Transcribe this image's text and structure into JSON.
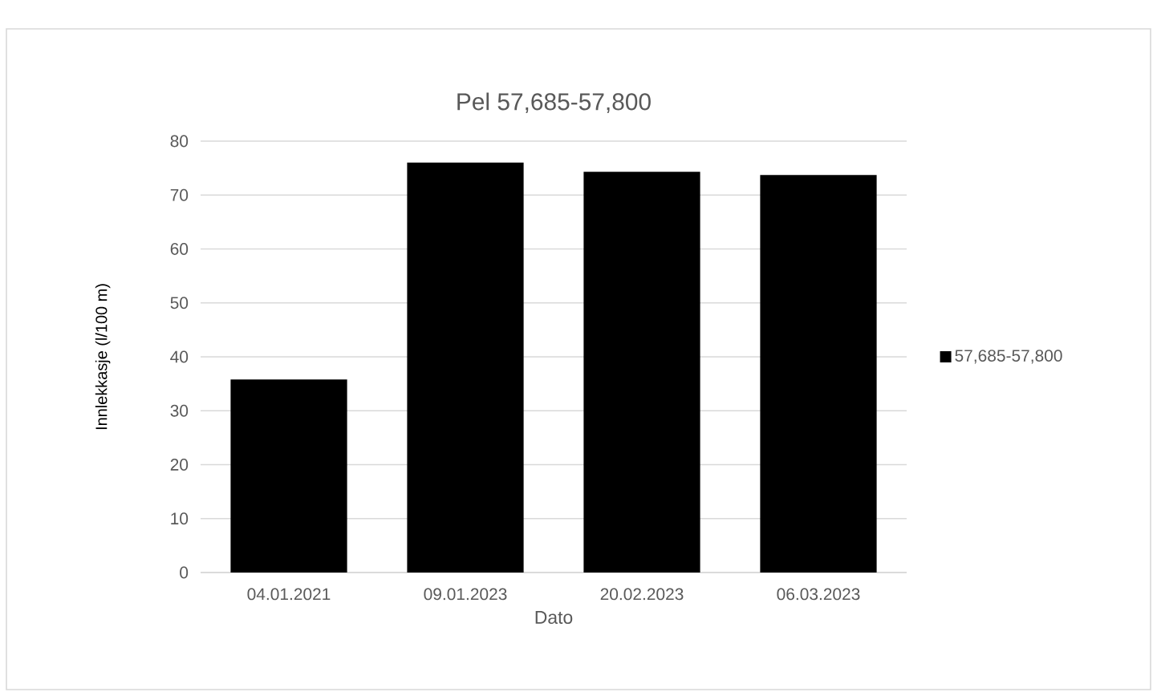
{
  "chart_data": {
    "type": "bar",
    "title": "Pel 57,685-57,800",
    "xlabel": "Dato",
    "ylabel": "Innlekkasje (l/100 m)",
    "categories": [
      "04.01.2021",
      "09.01.2023",
      "20.02.2023",
      "06.03.2023"
    ],
    "series": [
      {
        "name": "57,685-57,800",
        "color": "#000000",
        "values": [
          35.8,
          76.0,
          74.3,
          73.7
        ]
      }
    ],
    "ylim": [
      0,
      80
    ],
    "yticks": [
      0,
      10,
      20,
      30,
      40,
      50,
      60,
      70,
      80
    ],
    "grid": "y",
    "legend": "right"
  }
}
